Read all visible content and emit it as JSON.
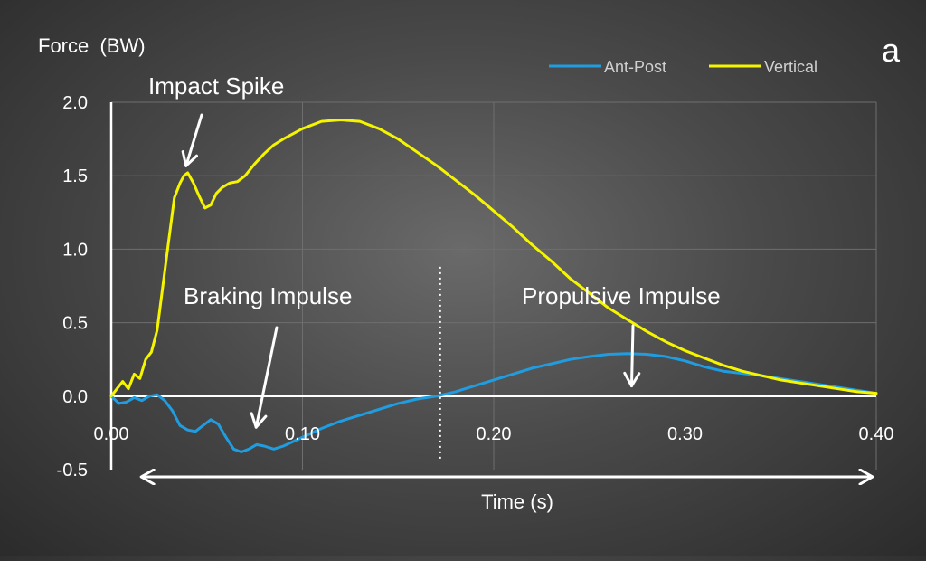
{
  "panel_label": "a",
  "chart_data": {
    "type": "line",
    "title": "",
    "ylabel": "Force  (BW)",
    "xlabel": "Time (s)",
    "xlim": [
      0,
      0.4
    ],
    "ylim": [
      -0.5,
      2.0
    ],
    "x_ticks": [
      "0.00",
      "0.10",
      "0.20",
      "0.30",
      "0.40"
    ],
    "y_ticks": [
      "2.0",
      "1.5",
      "1.0",
      "0.5",
      "0.0",
      "-0.5"
    ],
    "grid": true,
    "legend_position": "top-right",
    "colors": {
      "Ant-Post": "#1f9de0",
      "Vertical": "#f5f500"
    },
    "series": [
      {
        "name": "Ant-Post",
        "x": [
          0,
          0.004,
          0.008,
          0.012,
          0.016,
          0.02,
          0.024,
          0.028,
          0.032,
          0.036,
          0.04,
          0.044,
          0.048,
          0.052,
          0.056,
          0.06,
          0.064,
          0.068,
          0.072,
          0.076,
          0.08,
          0.085,
          0.09,
          0.1,
          0.11,
          0.12,
          0.13,
          0.14,
          0.15,
          0.16,
          0.17,
          0.18,
          0.19,
          0.2,
          0.21,
          0.22,
          0.23,
          0.24,
          0.25,
          0.26,
          0.27,
          0.28,
          0.29,
          0.3,
          0.31,
          0.32,
          0.33,
          0.34,
          0.35,
          0.36,
          0.37,
          0.38,
          0.39,
          0.4
        ],
        "values": [
          0,
          -0.05,
          -0.04,
          -0.01,
          -0.03,
          0,
          0.01,
          -0.03,
          -0.1,
          -0.2,
          -0.23,
          -0.24,
          -0.2,
          -0.16,
          -0.19,
          -0.28,
          -0.36,
          -0.38,
          -0.36,
          -0.33,
          -0.34,
          -0.36,
          -0.34,
          -0.28,
          -0.22,
          -0.17,
          -0.13,
          -0.09,
          -0.05,
          -0.02,
          0,
          0.03,
          0.07,
          0.11,
          0.15,
          0.19,
          0.22,
          0.25,
          0.27,
          0.285,
          0.29,
          0.285,
          0.27,
          0.24,
          0.2,
          0.17,
          0.155,
          0.14,
          0.12,
          0.1,
          0.08,
          0.06,
          0.04,
          0.02
        ]
      },
      {
        "name": "Vertical",
        "x": [
          0,
          0.003,
          0.006,
          0.009,
          0.012,
          0.015,
          0.018,
          0.021,
          0.024,
          0.027,
          0.03,
          0.033,
          0.036,
          0.038,
          0.04,
          0.043,
          0.046,
          0.049,
          0.052,
          0.055,
          0.058,
          0.062,
          0.066,
          0.07,
          0.075,
          0.08,
          0.085,
          0.09,
          0.1,
          0.11,
          0.12,
          0.13,
          0.14,
          0.15,
          0.16,
          0.17,
          0.18,
          0.19,
          0.2,
          0.21,
          0.22,
          0.23,
          0.24,
          0.25,
          0.26,
          0.27,
          0.28,
          0.29,
          0.3,
          0.31,
          0.32,
          0.33,
          0.34,
          0.35,
          0.36,
          0.37,
          0.38,
          0.39,
          0.4
        ],
        "values": [
          0,
          0.05,
          0.1,
          0.05,
          0.15,
          0.12,
          0.25,
          0.3,
          0.45,
          0.75,
          1.05,
          1.35,
          1.45,
          1.5,
          1.52,
          1.45,
          1.36,
          1.28,
          1.3,
          1.38,
          1.42,
          1.45,
          1.46,
          1.5,
          1.58,
          1.65,
          1.71,
          1.75,
          1.82,
          1.87,
          1.88,
          1.87,
          1.82,
          1.75,
          1.66,
          1.57,
          1.47,
          1.37,
          1.26,
          1.15,
          1.03,
          0.92,
          0.8,
          0.7,
          0.6,
          0.52,
          0.44,
          0.37,
          0.31,
          0.26,
          0.21,
          0.17,
          0.14,
          0.11,
          0.09,
          0.07,
          0.05,
          0.03,
          0.02
        ]
      }
    ],
    "annotations": [
      {
        "text": "Impact Spike",
        "points_to": {
          "x": 0.038,
          "y": 1.52
        }
      },
      {
        "text": "Braking Impulse",
        "points_to": {
          "x": 0.075,
          "y": -0.26
        }
      },
      {
        "text": "Propulsive Impulse",
        "points_to": {
          "x": 0.272,
          "y": 0.02
        }
      }
    ],
    "divider_x": 0.172,
    "span_arrow": [
      0.01,
      0.4
    ]
  }
}
